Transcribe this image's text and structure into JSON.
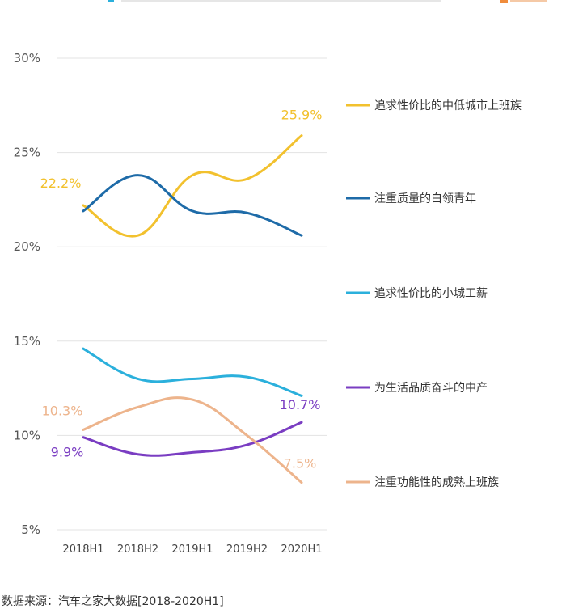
{
  "chart_data": {
    "type": "line",
    "categories": [
      "2018H1",
      "2018H2",
      "2019H1",
      "2019H2",
      "2020H1"
    ],
    "ylim": [
      5,
      30
    ],
    "yticks": [
      "5%",
      "10%",
      "15%",
      "20%",
      "25%",
      "30%"
    ],
    "ytick_values": [
      5,
      10,
      15,
      20,
      25,
      30
    ],
    "grid": true,
    "legend_position": "right",
    "series": [
      {
        "name": "追求性价比的中低城市上班族",
        "color": "#F2C12E",
        "values": [
          22.2,
          20.6,
          23.8,
          23.6,
          25.9
        ],
        "labels": [
          {
            "index": 0,
            "text": "22.2%"
          },
          {
            "index": 4,
            "text": "25.9%"
          }
        ]
      },
      {
        "name": "注重质量的白领青年",
        "color": "#1E6BA8",
        "values": [
          21.9,
          23.8,
          21.9,
          21.8,
          20.6
        ],
        "labels": []
      },
      {
        "name": "追求性价比的小城工薪",
        "color": "#2BB0DC",
        "values": [
          14.6,
          13.0,
          13.0,
          13.1,
          12.1
        ],
        "labels": []
      },
      {
        "name": "为生活品质奋斗的中产",
        "color": "#7A3DC2",
        "values": [
          9.9,
          9.0,
          9.1,
          9.5,
          10.7
        ],
        "labels": [
          {
            "index": 0,
            "text": "9.9%"
          },
          {
            "index": 4,
            "text": "10.7%"
          }
        ]
      },
      {
        "name": "注重功能性的成熟上班族",
        "color": "#EDB48C",
        "values": [
          10.3,
          11.5,
          11.9,
          10.0,
          7.5
        ],
        "labels": [
          {
            "index": 0,
            "text": "10.3%"
          },
          {
            "index": 4,
            "text": "7.5%"
          }
        ]
      }
    ]
  },
  "source": "数据来源：汽车之家大数据[2018-2020H1]"
}
